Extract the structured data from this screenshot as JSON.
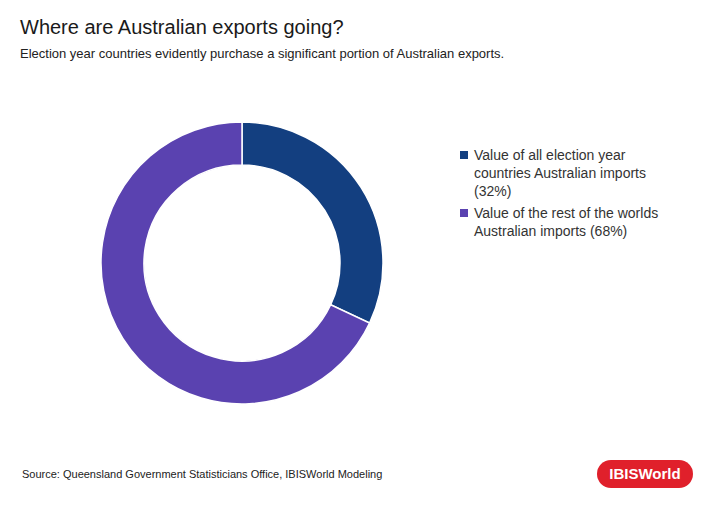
{
  "chart_data": {
    "type": "donut",
    "title": "Where are Australian exports going?",
    "subtitle": "Election year countries evidently purchase a significant portion of Australian exports.",
    "categories": [
      "Value of all election year countries Australian imports (32%)",
      "Value of the rest of the worlds Australian imports (68%)"
    ],
    "values": [
      32,
      68
    ],
    "colors": [
      "#133f80",
      "#5a42b0"
    ],
    "legend": "right",
    "source": "Source: Queensland Government Statisticians Office, IBISWorld Modeling",
    "logo": "IBISWorld"
  }
}
